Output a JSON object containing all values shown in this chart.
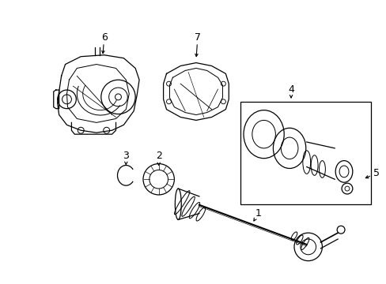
{
  "background_color": "#ffffff",
  "line_color": "#000000",
  "text_color": "#000000",
  "fig_width": 4.89,
  "fig_height": 3.6,
  "dpi": 100
}
